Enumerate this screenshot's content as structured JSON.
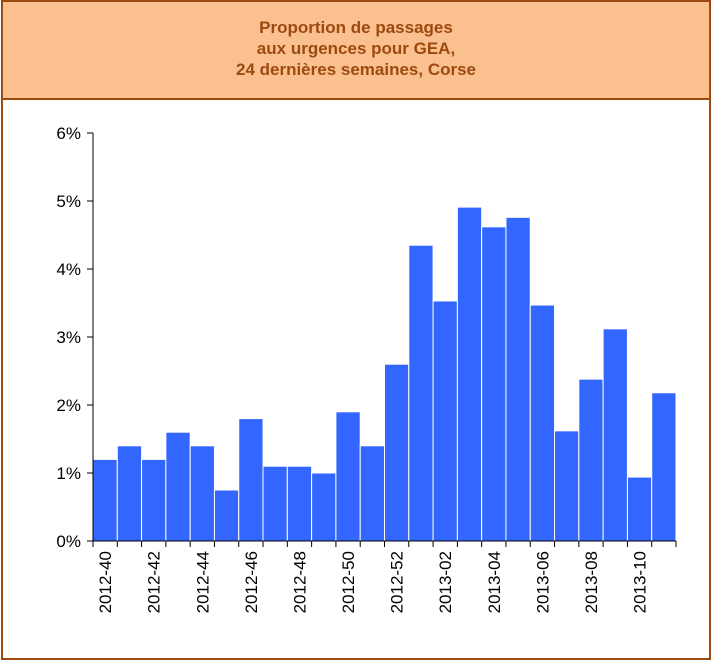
{
  "chart_data": {
    "type": "bar",
    "title": "Proportion de passages\naux urgences pour GEA,\n24 dernières semaines, Corse",
    "categories": [
      "2012-40",
      null,
      "2012-42",
      null,
      "2012-44",
      null,
      "2012-46",
      null,
      "2012-48",
      null,
      "2012-50",
      null,
      "2012-52",
      null,
      "2013-02",
      null,
      "2013-04",
      null,
      "2013-06",
      null,
      "2013-08",
      null,
      "2013-10",
      null
    ],
    "values": [
      1.2,
      1.4,
      1.2,
      1.6,
      1.4,
      0.75,
      1.8,
      1.1,
      1.1,
      1.0,
      1.9,
      1.4,
      2.6,
      4.35,
      3.53,
      4.91,
      4.62,
      4.76,
      3.47,
      1.62,
      2.38,
      3.12,
      0.94,
      2.18
    ],
    "color": "#3366ff",
    "ylim": [
      0,
      6
    ],
    "yticks": [
      {
        "value": 0,
        "label": "0%"
      },
      {
        "value": 1,
        "label": "1%"
      },
      {
        "value": 2,
        "label": "2%"
      },
      {
        "value": 3,
        "label": "3%"
      },
      {
        "value": 4,
        "label": "4%"
      },
      {
        "value": 5,
        "label": "5%"
      },
      {
        "value": 6,
        "label": "6%"
      }
    ]
  }
}
